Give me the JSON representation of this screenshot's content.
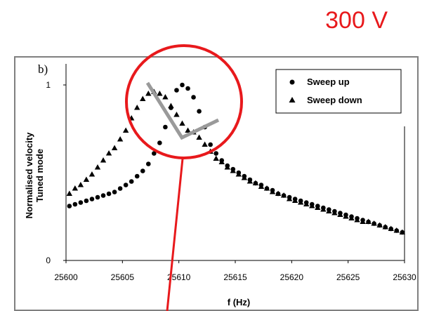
{
  "annotation": {
    "voltage_label": "300 V",
    "color": "#e8191c"
  },
  "chart_data": {
    "type": "scatter",
    "panel_label": "b)",
    "xlabel": "f (Hz)",
    "ylabel_line1": "Normalised velocity",
    "ylabel_line2": "Tuned mode",
    "xlim": [
      25600,
      25630
    ],
    "ylim": [
      0,
      1.12
    ],
    "x_ticks": [
      "25600",
      "25605",
      "25610",
      "25615",
      "25620",
      "25625",
      "25630"
    ],
    "y_ticks": [
      "0",
      "1"
    ],
    "grid": false,
    "legend_position": "top-right",
    "series": [
      {
        "name": "Sweep up",
        "marker": "circle",
        "x": [
          25600.3,
          25600.8,
          25601.3,
          25601.8,
          25602.3,
          25602.8,
          25603.3,
          25603.8,
          25604.3,
          25604.8,
          25605.3,
          25605.8,
          25606.3,
          25606.8,
          25607.3,
          25607.8,
          25608.3,
          25608.8,
          25609.3,
          25609.8,
          25610.3,
          25610.8,
          25611.3,
          25611.8,
          25612.3,
          25612.8,
          25613.3,
          25613.8,
          25614.3,
          25614.8,
          25615.3,
          25615.8,
          25616.3,
          25616.8,
          25617.3,
          25617.8,
          25618.3,
          25618.8,
          25619.3,
          25619.8,
          25620.3,
          25620.8,
          25621.3,
          25621.8,
          25622.3,
          25622.8,
          25623.3,
          25623.8,
          25624.3,
          25624.8,
          25625.3,
          25625.8,
          25626.3,
          25626.8,
          25627.3,
          25627.8,
          25628.3,
          25628.8,
          25629.3,
          25629.8
        ],
        "y": [
          0.31,
          0.32,
          0.33,
          0.34,
          0.35,
          0.36,
          0.37,
          0.38,
          0.39,
          0.41,
          0.43,
          0.45,
          0.48,
          0.51,
          0.55,
          0.61,
          0.67,
          0.76,
          0.87,
          0.97,
          1.0,
          0.98,
          0.93,
          0.85,
          0.76,
          0.66,
          0.61,
          0.57,
          0.54,
          0.52,
          0.5,
          0.48,
          0.46,
          0.44,
          0.43,
          0.41,
          0.4,
          0.38,
          0.37,
          0.36,
          0.35,
          0.34,
          0.33,
          0.32,
          0.31,
          0.3,
          0.29,
          0.28,
          0.27,
          0.26,
          0.25,
          0.24,
          0.23,
          0.22,
          0.21,
          0.2,
          0.19,
          0.18,
          0.17,
          0.16
        ]
      },
      {
        "name": "Sweep down",
        "marker": "triangle",
        "x": [
          25600.3,
          25600.8,
          25601.3,
          25601.8,
          25602.3,
          25602.8,
          25603.3,
          25603.8,
          25604.3,
          25604.8,
          25605.3,
          25605.8,
          25606.3,
          25606.8,
          25607.3,
          25607.8,
          25608.3,
          25608.8,
          25609.3,
          25609.8,
          25610.3,
          25610.8,
          25611.3,
          25611.8,
          25612.3,
          25612.8,
          25613.3,
          25613.8,
          25614.3,
          25614.8,
          25615.3,
          25615.8,
          25616.3,
          25616.8,
          25617.3,
          25617.8,
          25618.3,
          25618.8,
          25619.3,
          25619.8,
          25620.3,
          25620.8,
          25621.3,
          25621.8,
          25622.3,
          25622.8,
          25623.3,
          25623.8,
          25624.3,
          25624.8,
          25625.3,
          25625.8,
          25626.3,
          25626.8,
          25627.3,
          25627.8,
          25628.3,
          25628.8,
          25629.3,
          25629.8
        ],
        "y": [
          0.38,
          0.41,
          0.43,
          0.46,
          0.49,
          0.53,
          0.57,
          0.61,
          0.64,
          0.69,
          0.74,
          0.81,
          0.87,
          0.92,
          0.95,
          0.96,
          0.95,
          0.93,
          0.88,
          0.83,
          0.78,
          0.74,
          0.73,
          0.7,
          0.66,
          0.62,
          0.58,
          0.56,
          0.53,
          0.51,
          0.49,
          0.47,
          0.45,
          0.44,
          0.42,
          0.41,
          0.39,
          0.38,
          0.37,
          0.35,
          0.34,
          0.33,
          0.32,
          0.31,
          0.3,
          0.29,
          0.28,
          0.27,
          0.26,
          0.25,
          0.24,
          0.23,
          0.22,
          0.22,
          0.21,
          0.2,
          0.19,
          0.18,
          0.17,
          0.16
        ]
      }
    ]
  }
}
